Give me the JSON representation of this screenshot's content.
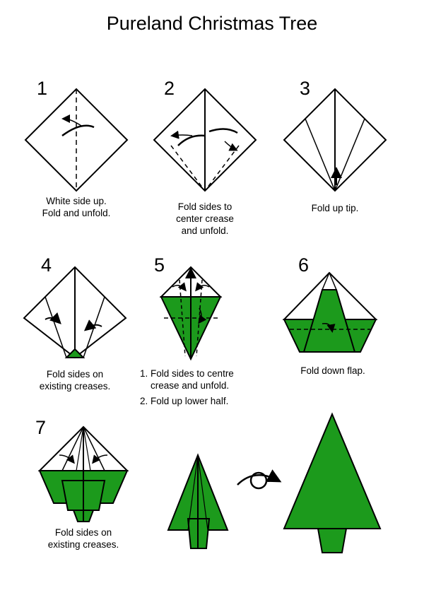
{
  "title": "Pureland Christmas Tree",
  "colors": {
    "paper_green": "#1c9a1c",
    "line": "#000000",
    "paper_white": "#ffffff"
  },
  "steps": [
    {
      "number": "1",
      "caption": "White side up.\nFold and unfold."
    },
    {
      "number": "2",
      "caption": "Fold sides to\ncenter crease\nand unfold."
    },
    {
      "number": "3",
      "caption": "Fold up tip."
    },
    {
      "number": "4",
      "caption": "Fold sides on\nexisting creases."
    },
    {
      "number": "5",
      "list": [
        "1. Fold sides to centre\n    crease and unfold.",
        "2. Fold up lower half."
      ]
    },
    {
      "number": "6",
      "caption": "Fold down flap."
    },
    {
      "number": "7",
      "caption": "Fold sides on\nexisting creases."
    }
  ],
  "icons": [
    "fold-arrow-icon",
    "turn-over-icon"
  ]
}
